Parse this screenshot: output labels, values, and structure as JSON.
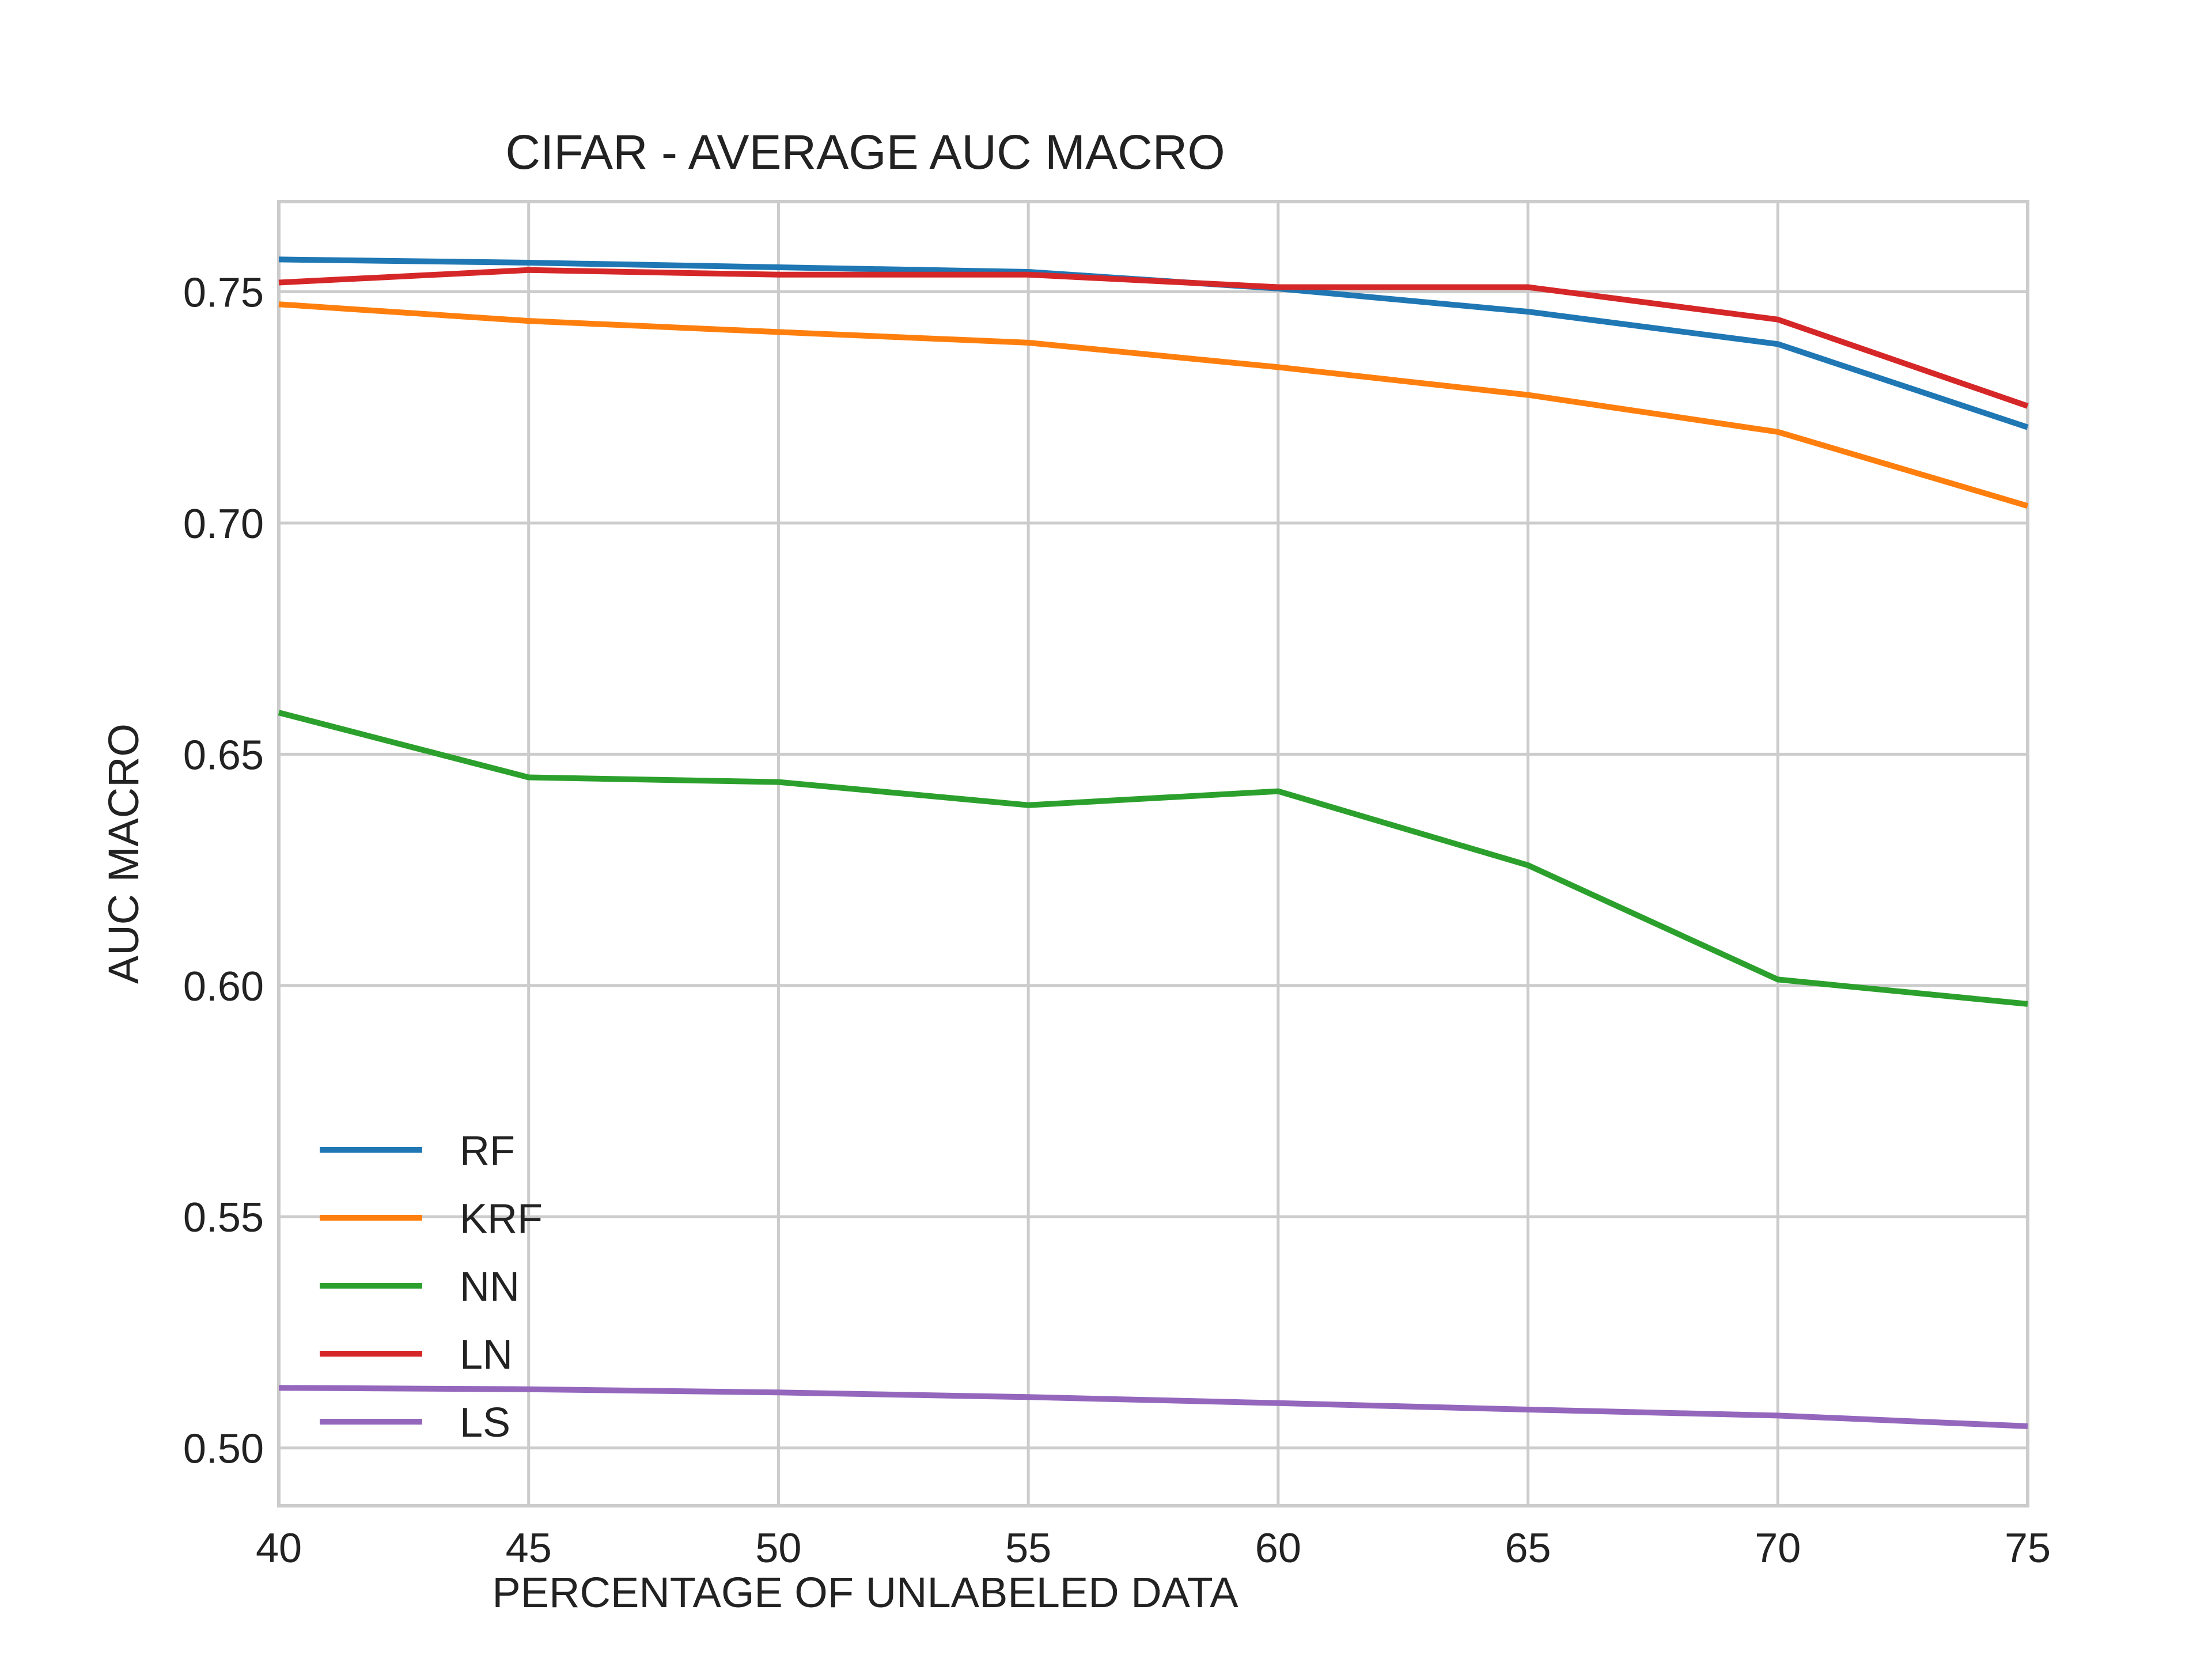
{
  "chart_data": {
    "type": "line",
    "title": "CIFAR - AVERAGE AUC MACRO",
    "xlabel": "PERCENTAGE OF UNLABELED DATA",
    "ylabel": "AUC MACRO",
    "x": [
      40,
      45,
      50,
      55,
      60,
      65,
      70,
      75
    ],
    "xlim": [
      40,
      75
    ],
    "ylim": [
      0.4875,
      0.7695
    ],
    "xticks": [
      40,
      45,
      50,
      55,
      60,
      65,
      70,
      75
    ],
    "yticks": [
      0.5,
      0.55,
      0.6,
      0.65,
      0.7,
      0.75
    ],
    "xtick_labels": [
      "40",
      "45",
      "50",
      "55",
      "60",
      "65",
      "70",
      "75"
    ],
    "ytick_labels": [
      "0.50",
      "0.55",
      "0.60",
      "0.65",
      "0.70",
      "0.75"
    ],
    "grid": true,
    "legend_position": "lower-left",
    "series": [
      {
        "name": "RF",
        "color": "#1f77b4",
        "values": [
          0.757,
          0.7563,
          0.7553,
          0.7543,
          0.7507,
          0.7457,
          0.7387,
          0.7207
        ]
      },
      {
        "name": "KRF",
        "color": "#ff7f0e",
        "values": [
          0.7473,
          0.7437,
          0.7413,
          0.739,
          0.7337,
          0.7277,
          0.7197,
          0.7037
        ]
      },
      {
        "name": "NN",
        "color": "#2ca02c",
        "values": [
          0.659,
          0.645,
          0.644,
          0.639,
          0.642,
          0.626,
          0.6013,
          0.596
        ]
      },
      {
        "name": "LN",
        "color": "#d62728",
        "values": [
          0.752,
          0.7547,
          0.7537,
          0.7537,
          0.751,
          0.751,
          0.744,
          0.7253
        ]
      },
      {
        "name": "LS",
        "color": "#9467bd",
        "values": [
          0.513,
          0.5127,
          0.512,
          0.511,
          0.5097,
          0.5083,
          0.507,
          0.5047
        ]
      }
    ]
  }
}
